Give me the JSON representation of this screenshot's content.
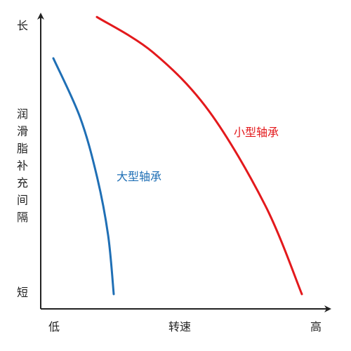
{
  "chart_data": {
    "type": "line",
    "title": "",
    "xlabel": "转速",
    "ylabel": "润滑脂补充间隔",
    "x_tick_labels": {
      "low": "低",
      "high": "高"
    },
    "y_tick_labels": {
      "high": "长",
      "low": "短"
    },
    "xlim": [
      0,
      100
    ],
    "ylim": [
      0,
      100
    ],
    "grid": false,
    "legend": "none",
    "series": [
      {
        "name": "小型轴承",
        "color": "#e3191c",
        "points": [
          [
            20,
            99
          ],
          [
            40,
            87
          ],
          [
            60,
            67
          ],
          [
            80,
            35
          ],
          [
            93,
            5
          ]
        ]
      },
      {
        "name": "大型轴承",
        "color": "#1f6fb5",
        "points": [
          [
            4.5,
            85
          ],
          [
            14,
            65
          ],
          [
            20,
            45
          ],
          [
            24,
            25
          ],
          [
            26,
            5
          ]
        ]
      }
    ]
  }
}
